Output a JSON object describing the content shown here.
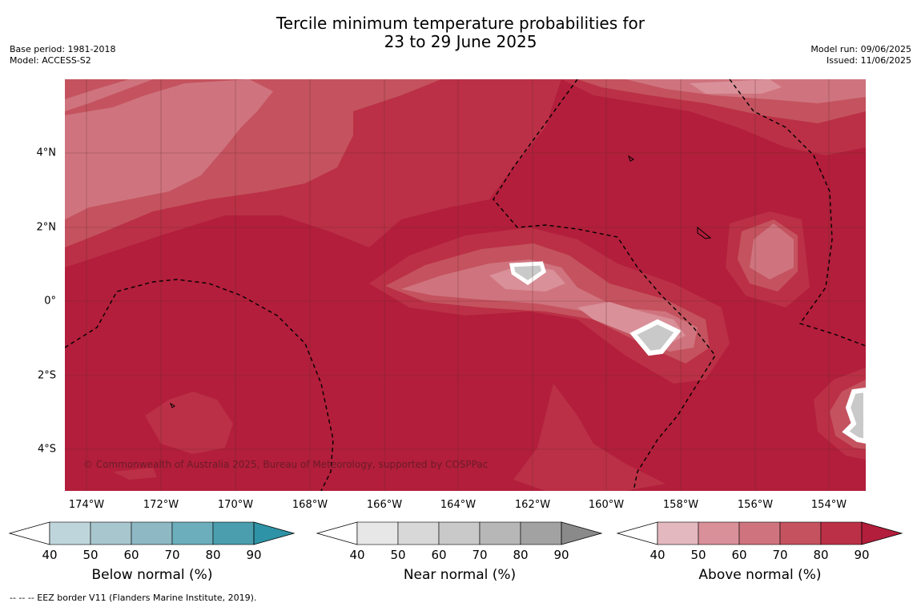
{
  "title_line1": "Tercile minimum temperature probabilities for",
  "title_line2": "23 to 29 June 2025",
  "meta_left": [
    "Base period: 1981-2018",
    "Model: ACCESS-S2"
  ],
  "meta_right": [
    "Model run: 09/06/2025",
    "Issued: 11/06/2025"
  ],
  "copyright": "© Commonwealth of Australia 2025, Bureau of Meteorology, supported by COSPPac",
  "lat_ticks": [
    "4°N",
    "2°N",
    "0°",
    "2°S",
    "4°S"
  ],
  "lon_ticks": [
    "174°W",
    "172°W",
    "170°W",
    "168°W",
    "166°W",
    "164°W",
    "162°W",
    "160°W",
    "158°W",
    "156°W",
    "154°W"
  ],
  "colorbars": [
    {
      "label": "Below normal (%)",
      "ticks": [
        "40",
        "50",
        "60",
        "70",
        "80",
        "90"
      ],
      "colors": [
        "#bfd5dc",
        "#a8c6cd",
        "#8db8c4",
        "#6caebc",
        "#4a9ead",
        "#2e93a6"
      ]
    },
    {
      "label": "Near normal (%)",
      "ticks": [
        "40",
        "50",
        "60",
        "70",
        "80",
        "90"
      ],
      "colors": [
        "#e7e7e7",
        "#d8d8d8",
        "#c9c9c9",
        "#b7b7b7",
        "#a2a2a2",
        "#8a8a8a"
      ]
    },
    {
      "label": "Above normal (%)",
      "ticks": [
        "40",
        "50",
        "60",
        "70",
        "80",
        "90"
      ],
      "colors": [
        "#e3b8be",
        "#d99099",
        "#cf747e",
        "#c4535f",
        "#bb3046",
        "#b21e3b"
      ]
    }
  ],
  "footer": "--  --  -- EEZ border V11 (Flanders Marine Institute, 2019)."
}
